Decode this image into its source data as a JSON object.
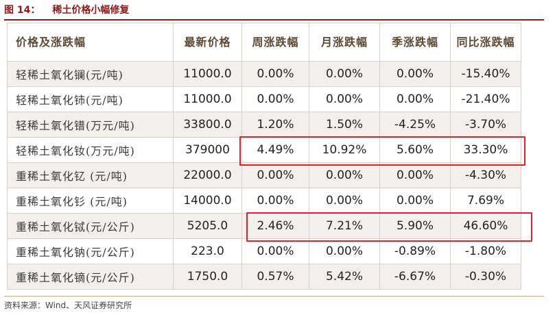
{
  "figure": {
    "label": "图 14：",
    "title": "稀土价格小幅修复"
  },
  "table": {
    "headers": [
      "价格及涨跌幅",
      "最新价格",
      "周涨跌幅",
      "月涨跌幅",
      "季涨跌幅",
      "同比涨跌幅"
    ],
    "rows": [
      [
        "轻稀土氧化镧(元/吨)",
        "11000.0",
        "0.00%",
        "0.00%",
        "0.00%",
        "-15.40%"
      ],
      [
        "轻稀土氧化铈(元/吨)",
        "11000.0",
        "0.00%",
        "0.00%",
        "0.00%",
        "-21.40%"
      ],
      [
        "轻稀土氧化镨(万元/吨)",
        "33800.0",
        "1.20%",
        "1.50%",
        "-4.25%",
        "-3.70%"
      ],
      [
        "轻稀土氧化钕(万元/吨)",
        "379000",
        "4.49%",
        "10.92%",
        "5.60%",
        "33.30%"
      ],
      [
        "重稀土氧化钇 (元/吨)",
        "22000.0",
        "0.00%",
        "0.00%",
        "0.00%",
        "-4.30%"
      ],
      [
        "重稀土氧化钐 (元/吨)",
        "14000.0",
        "0.00%",
        "0.00%",
        "0.00%",
        "7.69%"
      ],
      [
        "重稀土氧化铽(元/公斤)",
        "5205.0",
        "2.46%",
        "7.21%",
        "5.90%",
        "46.60%"
      ],
      [
        "重稀土氧化钠(元/公斤)",
        "223.0",
        "0.00%",
        "0.00%",
        "-0.89%",
        "-1.80%"
      ],
      [
        "重稀土氧化镝(元/公斤)",
        "1750.0",
        "0.57%",
        "5.42%",
        "-6.67%",
        "-0.30%"
      ]
    ]
  },
  "highlight_color": "#d8232a",
  "source": "资料来源：Wind、天风证券研究所"
}
